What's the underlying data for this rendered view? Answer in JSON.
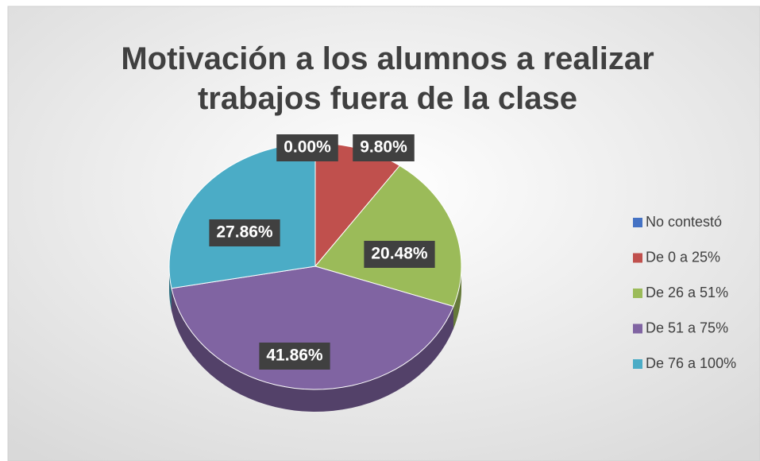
{
  "chart_data": {
    "type": "pie3d",
    "title": "Motivación a los alumnos a realizar trabajos fuera de la clase",
    "categories": [
      "No contestó",
      "De 0 a 25%",
      "De 26 a 51%",
      "De 51 a 75%",
      "De 76 a 100%"
    ],
    "values": [
      0,
      9.8,
      20.48,
      41.86,
      27.86
    ],
    "value_labels": [
      "0.00%",
      "9.80%",
      "20.48%",
      "41.86%",
      "27.86%"
    ],
    "colors": [
      "#4472c4",
      "#c0504d",
      "#9bbb59",
      "#8064a2",
      "#4bacc6"
    ],
    "legend": "right"
  }
}
